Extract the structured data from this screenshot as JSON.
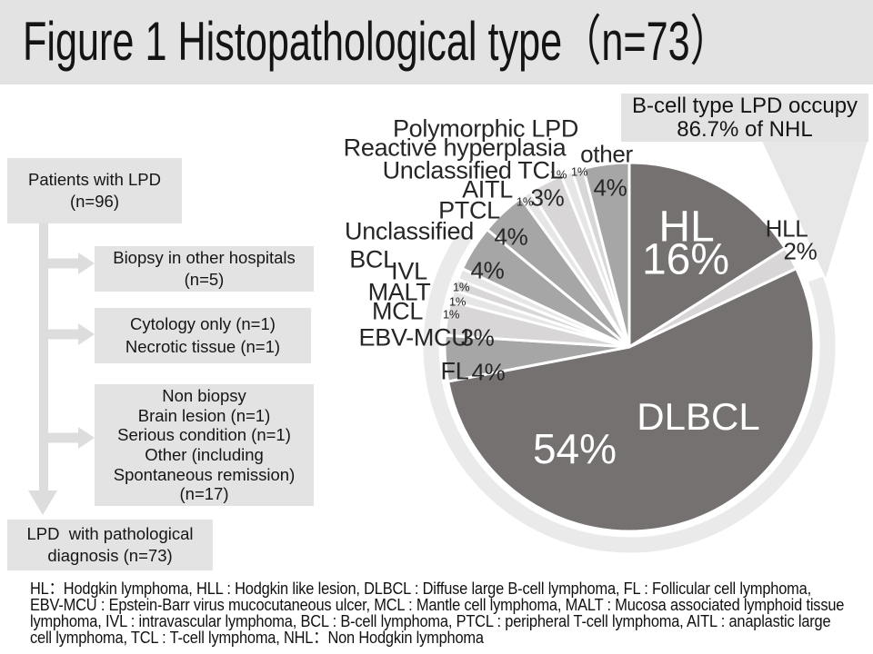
{
  "page": {
    "title": "Figure 1 Histopathological type（n=73）"
  },
  "callout": {
    "text": "B-cell type LPD occupy\n86.7% of NHL"
  },
  "flowchart": {
    "boxes": [
      {
        "text": "Patients with LPD\n(n=96)"
      },
      {
        "text": "Biopsy in other hospitals\n(n=5)"
      },
      {
        "text": "Cytology only (n=1)\nNecrotic tissue (n=1)"
      },
      {
        "text": "Non biopsy\nBrain lesion (n=1)\nSerious condition (n=1)\nOther (including\nSpontaneous remission)\n(n=17)"
      },
      {
        "text": "LPD  with pathological\ndiagnosis (n=73)"
      }
    ]
  },
  "footnote": "HL：Hodgkin lymphoma, HLL : Hodgkin like lesion, DLBCL : Diffuse large B-cell lymphoma, FL : Follicular cell lymphoma, EBV-MCU : Epstein-Barr virus mucocutaneous ulcer, MCL : Mantle cell lymphoma, MALT : Mucosa associated lymphoid tissue lymphoma, IVL : intravascular lymphoma, BCL : B-cell lymphoma, PTCL : peripheral T-cell lymphoma, AITL : anaplastic large cell lymphoma, TCL : T-cell lymphoma, NHL：Non Hodgkin lymphoma",
  "chart_data": {
    "type": "pie",
    "title": "Histopathological type (n=73)",
    "start": "top",
    "direction": "clockwise",
    "annotation": "B-cell type LPD occupy 86.7% of NHL",
    "segments": [
      {
        "label": "HL",
        "value": 16,
        "pct_label": "16%",
        "tone": "dark"
      },
      {
        "label": "HLL",
        "value": 2,
        "pct_label": "2%",
        "tone": "light"
      },
      {
        "label": "DLBCL",
        "value": 54,
        "pct_label": "54%",
        "tone": "dark"
      },
      {
        "label": "FL",
        "value": 4,
        "pct_label": "4%",
        "tone": "medium"
      },
      {
        "label": "EBV-MCU",
        "value": 3,
        "pct_label": "3%",
        "tone": "light"
      },
      {
        "label": "MCL",
        "value": 1,
        "pct_label": "1%",
        "tone": "xlight"
      },
      {
        "label": "MALT",
        "value": 1,
        "pct_label": "1%",
        "tone": "light"
      },
      {
        "label": "IVL",
        "value": 1,
        "pct_label": "1%",
        "tone": "xlight"
      },
      {
        "label": "Unclassified BCL",
        "value": 4,
        "pct_label": "4%",
        "tone": "medium"
      },
      {
        "label": "PTCL",
        "value": 4,
        "pct_label": "4%",
        "tone": "medium"
      },
      {
        "label": "AITL",
        "value": 1,
        "pct_label": "1%",
        "tone": "xlight"
      },
      {
        "label": "Unclassified TCL",
        "value": 3,
        "pct_label": "3%",
        "tone": "light"
      },
      {
        "label": "Reactive hyperplasia",
        "value": 1,
        "pct_label": "1%",
        "tone": "xlight"
      },
      {
        "label": "Polymorphic LPD",
        "value": 1,
        "pct_label": "1%",
        "tone": "light"
      },
      {
        "label": "other",
        "value": 4,
        "pct_label": "4%",
        "tone": "medium"
      }
    ],
    "palette": {
      "dark": "#767171",
      "medium": "#a6a6a6",
      "light": "#d8d6d6",
      "xlight": "#e7e6e6",
      "ring": "#ebeaea",
      "pointer": "#e8e7e7",
      "chrome": "#e4e3e3",
      "arrow": "#dedddd",
      "white_text": "#ffffff",
      "text": "#262626"
    }
  }
}
